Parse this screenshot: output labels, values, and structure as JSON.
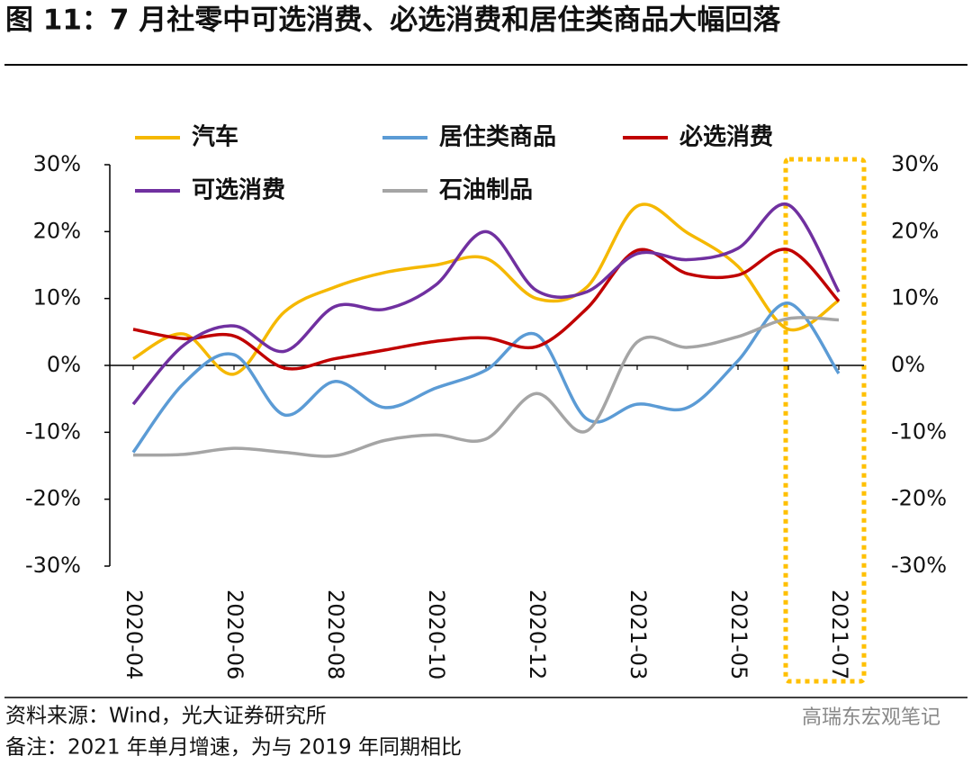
{
  "chart_data": {
    "type": "line",
    "title": "图 11：7 月社零中可选消费、必选消费和居住类商品大幅回落",
    "categories": [
      "2020-04",
      null,
      "2020-06",
      null,
      "2020-08",
      null,
      "2020-10",
      null,
      "2020-12",
      null,
      "2021-03",
      null,
      "2021-05",
      null,
      "2021-07"
    ],
    "series": [
      {
        "name": "汽车",
        "color": "#f5b800",
        "values": [
          1,
          4.7,
          -1.3,
          8,
          11.7,
          13.9,
          15,
          16,
          10,
          11.7,
          23.8,
          19.8,
          14.8,
          5.4,
          9.7
        ]
      },
      {
        "name": "居住类商品",
        "color": "#5b9bd5",
        "values": [
          -13,
          -2.7,
          1.6,
          -7.4,
          -2.4,
          -6.3,
          -3.4,
          -0.7,
          4.6,
          -8,
          -5.8,
          -6.3,
          0.7,
          9.3,
          -1.2
        ]
      },
      {
        "name": "必选消费",
        "color": "#c00000",
        "values": [
          5.4,
          4,
          4.4,
          -0.4,
          1,
          2.3,
          3.6,
          4.1,
          2.8,
          8.5,
          17.2,
          13.7,
          13.5,
          17.3,
          9.6
        ]
      },
      {
        "name": "可选消费",
        "color": "#7030a0",
        "values": [
          -5.8,
          3,
          5.9,
          2.1,
          8.8,
          8.4,
          12,
          20,
          11.2,
          11,
          16.7,
          15.8,
          17.5,
          24,
          11
        ]
      },
      {
        "name": "石油制品",
        "color": "#a5a5a5",
        "values": [
          -13.4,
          -13.3,
          -12.4,
          -13,
          -13.5,
          -11.2,
          -10.4,
          -11,
          -4.2,
          -9.8,
          3.5,
          2.7,
          4.3,
          7,
          6.8
        ]
      }
    ],
    "ylim": [
      -30,
      30
    ],
    "yticks": [
      {
        "value": -30,
        "label": "-30%"
      },
      {
        "value": -20,
        "label": "-20%"
      },
      {
        "value": -10,
        "label": "-10%"
      },
      {
        "value": 0,
        "label": "0%"
      },
      {
        "value": 10,
        "label": "10%"
      },
      {
        "value": 20,
        "label": "20%"
      },
      {
        "value": 30,
        "label": "30%"
      }
    ],
    "y2lim": [
      -30,
      30
    ],
    "y2ticks": [
      {
        "value": -30,
        "label": "-30%"
      },
      {
        "value": -20,
        "label": "-20%"
      },
      {
        "value": -10,
        "label": "-10%"
      },
      {
        "value": 0,
        "label": "0%"
      },
      {
        "value": 10,
        "label": "10%"
      },
      {
        "value": 20,
        "label": "20%"
      },
      {
        "value": 30,
        "label": "30%"
      }
    ],
    "source": "资料来源：Wind，光大证券研究所",
    "note": "备注：2021 年单月增速，为与 2019 年同期相比",
    "watermark": "高瑞东宏观笔记"
  }
}
